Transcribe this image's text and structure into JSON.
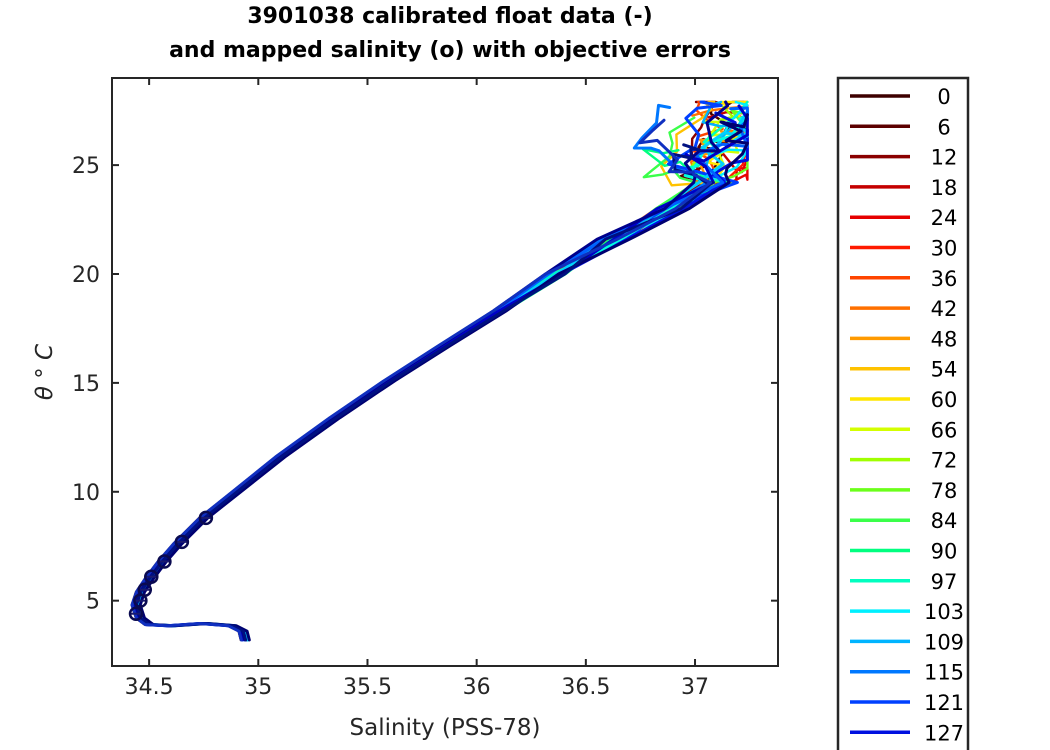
{
  "chart_data": {
    "type": "line",
    "title": [
      "3901038 calibrated float data (-)",
      "and mapped salinity (o) with objective errors"
    ],
    "xlabel": "Salinity (PSS-78)",
    "ylabel": "θ ° C",
    "xlim": [
      34.33,
      37.38
    ],
    "ylim": [
      2.0,
      29.0
    ],
    "xticks": [
      "34.5",
      "35",
      "35.5",
      "36",
      "36.5",
      "37"
    ],
    "xtick_values": [
      34.5,
      35.0,
      35.5,
      36.0,
      36.5,
      37.0
    ],
    "yticks": [
      "5",
      "10",
      "15",
      "20",
      "25"
    ],
    "ytick_values": [
      5,
      10,
      15,
      20,
      25
    ],
    "legend": {
      "placement": "outside-right",
      "entries": [
        {
          "label": "0",
          "color": "#3d0000"
        },
        {
          "label": "6",
          "color": "#5c0000"
        },
        {
          "label": "12",
          "color": "#8a0000"
        },
        {
          "label": "18",
          "color": "#c40000"
        },
        {
          "label": "24",
          "color": "#e60000"
        },
        {
          "label": "30",
          "color": "#ff1a00"
        },
        {
          "label": "36",
          "color": "#ff4500"
        },
        {
          "label": "42",
          "color": "#ff7000"
        },
        {
          "label": "48",
          "color": "#ff9a00"
        },
        {
          "label": "54",
          "color": "#ffc200"
        },
        {
          "label": "60",
          "color": "#ffe600"
        },
        {
          "label": "66",
          "color": "#d4ff00"
        },
        {
          "label": "72",
          "color": "#a0ff00"
        },
        {
          "label": "78",
          "color": "#6bff1a"
        },
        {
          "label": "84",
          "color": "#3aff4a"
        },
        {
          "label": "90",
          "color": "#00ff80"
        },
        {
          "label": "97",
          "color": "#00ffc0"
        },
        {
          "label": "103",
          "color": "#00f0ff"
        },
        {
          "label": "109",
          "color": "#00b4ff"
        },
        {
          "label": "115",
          "color": "#0078ff"
        },
        {
          "label": "121",
          "color": "#0040ff"
        },
        {
          "label": "127",
          "color": "#0010e0"
        }
      ]
    },
    "profile_path": [
      [
        34.94,
        3.2
      ],
      [
        34.93,
        3.6
      ],
      [
        34.88,
        3.85
      ],
      [
        34.75,
        3.95
      ],
      [
        34.6,
        3.85
      ],
      [
        34.5,
        3.9
      ],
      [
        34.46,
        4.2
      ],
      [
        34.44,
        4.8
      ],
      [
        34.46,
        5.4
      ],
      [
        34.5,
        6.0
      ],
      [
        34.56,
        6.8
      ],
      [
        34.63,
        7.6
      ],
      [
        34.75,
        8.8
      ],
      [
        34.9,
        10.0
      ],
      [
        35.1,
        11.6
      ],
      [
        35.35,
        13.4
      ],
      [
        35.6,
        15.1
      ],
      [
        35.85,
        16.7
      ],
      [
        36.1,
        18.3
      ],
      [
        36.35,
        20.0
      ],
      [
        36.6,
        21.6
      ],
      [
        36.85,
        23.0
      ],
      [
        37.05,
        24.2
      ]
    ],
    "mapped_points": [
      {
        "salinity": 34.44,
        "theta": 4.4
      },
      {
        "salinity": 34.46,
        "theta": 5.0
      },
      {
        "salinity": 34.48,
        "theta": 5.5
      },
      {
        "salinity": 34.51,
        "theta": 6.1
      },
      {
        "salinity": 34.57,
        "theta": 6.8
      },
      {
        "salinity": 34.65,
        "theta": 7.7
      },
      {
        "salinity": 34.76,
        "theta": 8.8
      }
    ]
  }
}
